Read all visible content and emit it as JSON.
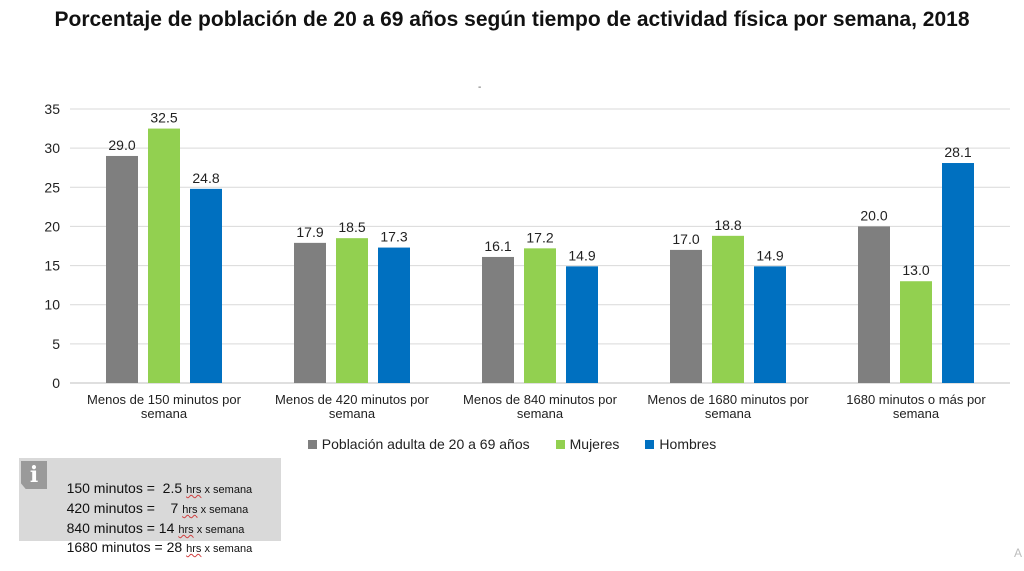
{
  "chart_data": {
    "type": "bar",
    "title": "Porcentaje de población de 20 a 69 años según tiempo de actividad física por semana, 2018",
    "categories": [
      [
        "Menos de 150 minutos por",
        "semana"
      ],
      [
        "Menos de 420 minutos por",
        "semana"
      ],
      [
        "Menos de 840 minutos por",
        "semana"
      ],
      [
        "Menos de 1680 minutos por",
        "semana"
      ],
      [
        "1680 minutos o más por",
        "semana"
      ]
    ],
    "series": [
      {
        "name": "Población adulta de 20 a 69 años",
        "color": "#7f7f7f",
        "values": [
          29.0,
          17.9,
          16.1,
          17.0,
          20.0
        ]
      },
      {
        "name": "Mujeres",
        "color": "#92d050",
        "values": [
          32.5,
          18.5,
          17.2,
          18.8,
          13.0
        ]
      },
      {
        "name": "Hombres",
        "color": "#0070c0",
        "values": [
          24.8,
          17.3,
          14.9,
          14.9,
          28.1
        ]
      }
    ],
    "ylim": [
      0,
      35
    ],
    "yticks": [
      0,
      5,
      10,
      15,
      20,
      25,
      30,
      35
    ],
    "xlabel": "",
    "ylabel": "",
    "grid": true,
    "legend_position": "bottom"
  },
  "info_box": {
    "icon": "info-icon",
    "icon_glyph": "i",
    "rows": [
      {
        "minutes": "150 minutos =  2.5",
        "unit_hrs": "hrs",
        "unit_rest": "x semana"
      },
      {
        "minutes": "420 minutos =    7",
        "unit_hrs": "hrs",
        "unit_rest": "x semana"
      },
      {
        "minutes": "840 minutos = 14",
        "unit_hrs": "hrs",
        "unit_rest": "x semana"
      },
      {
        "minutes": "1680 minutos = 28",
        "unit_hrs": "hrs",
        "unit_rest": "x semana"
      }
    ]
  },
  "marks": {
    "dash": "-",
    "corner": "A"
  }
}
